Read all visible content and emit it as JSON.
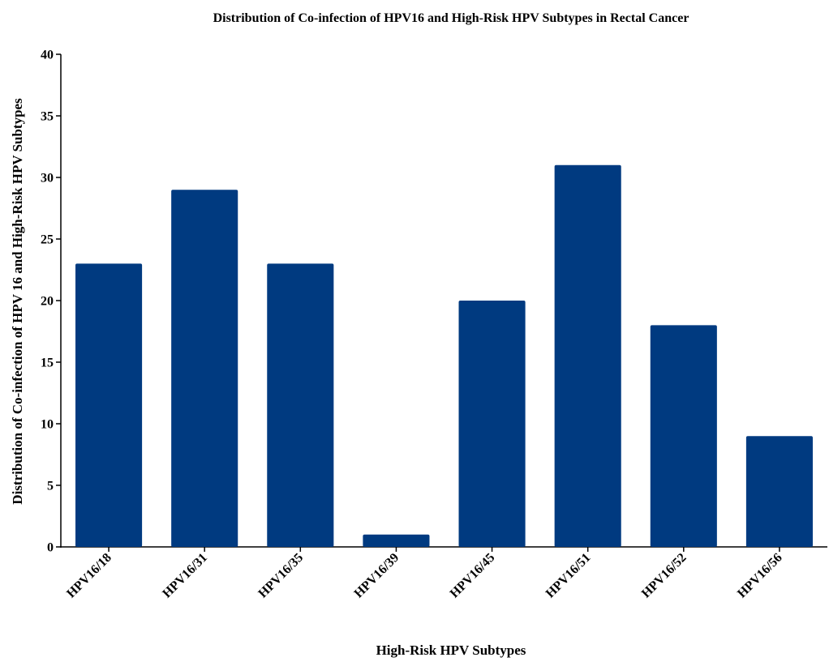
{
  "chart_data": {
    "type": "bar",
    "title": "Distribution of Co-infection of HPV16 and High-Risk HPV  Subtypes in Rectal Cancer",
    "xlabel": "High-Risk HPV Subtypes",
    "ylabel": "Distribution of Co-infection of HPV 16 and High-Risk HPV Subtypes",
    "categories": [
      "HPV16/18",
      "HPV16/31",
      "HPV16/35",
      "HPV16/39",
      "HPV16/45",
      "HPV16/51",
      "HPV16/52",
      "HPV16/56"
    ],
    "values": [
      23,
      29,
      23,
      1,
      20,
      31,
      18,
      9
    ],
    "ylim": [
      0,
      40
    ],
    "yticks": [
      0,
      5,
      10,
      15,
      20,
      25,
      30,
      35,
      40
    ],
    "bar_color": "#003a80",
    "grid": false,
    "legend": "none"
  }
}
